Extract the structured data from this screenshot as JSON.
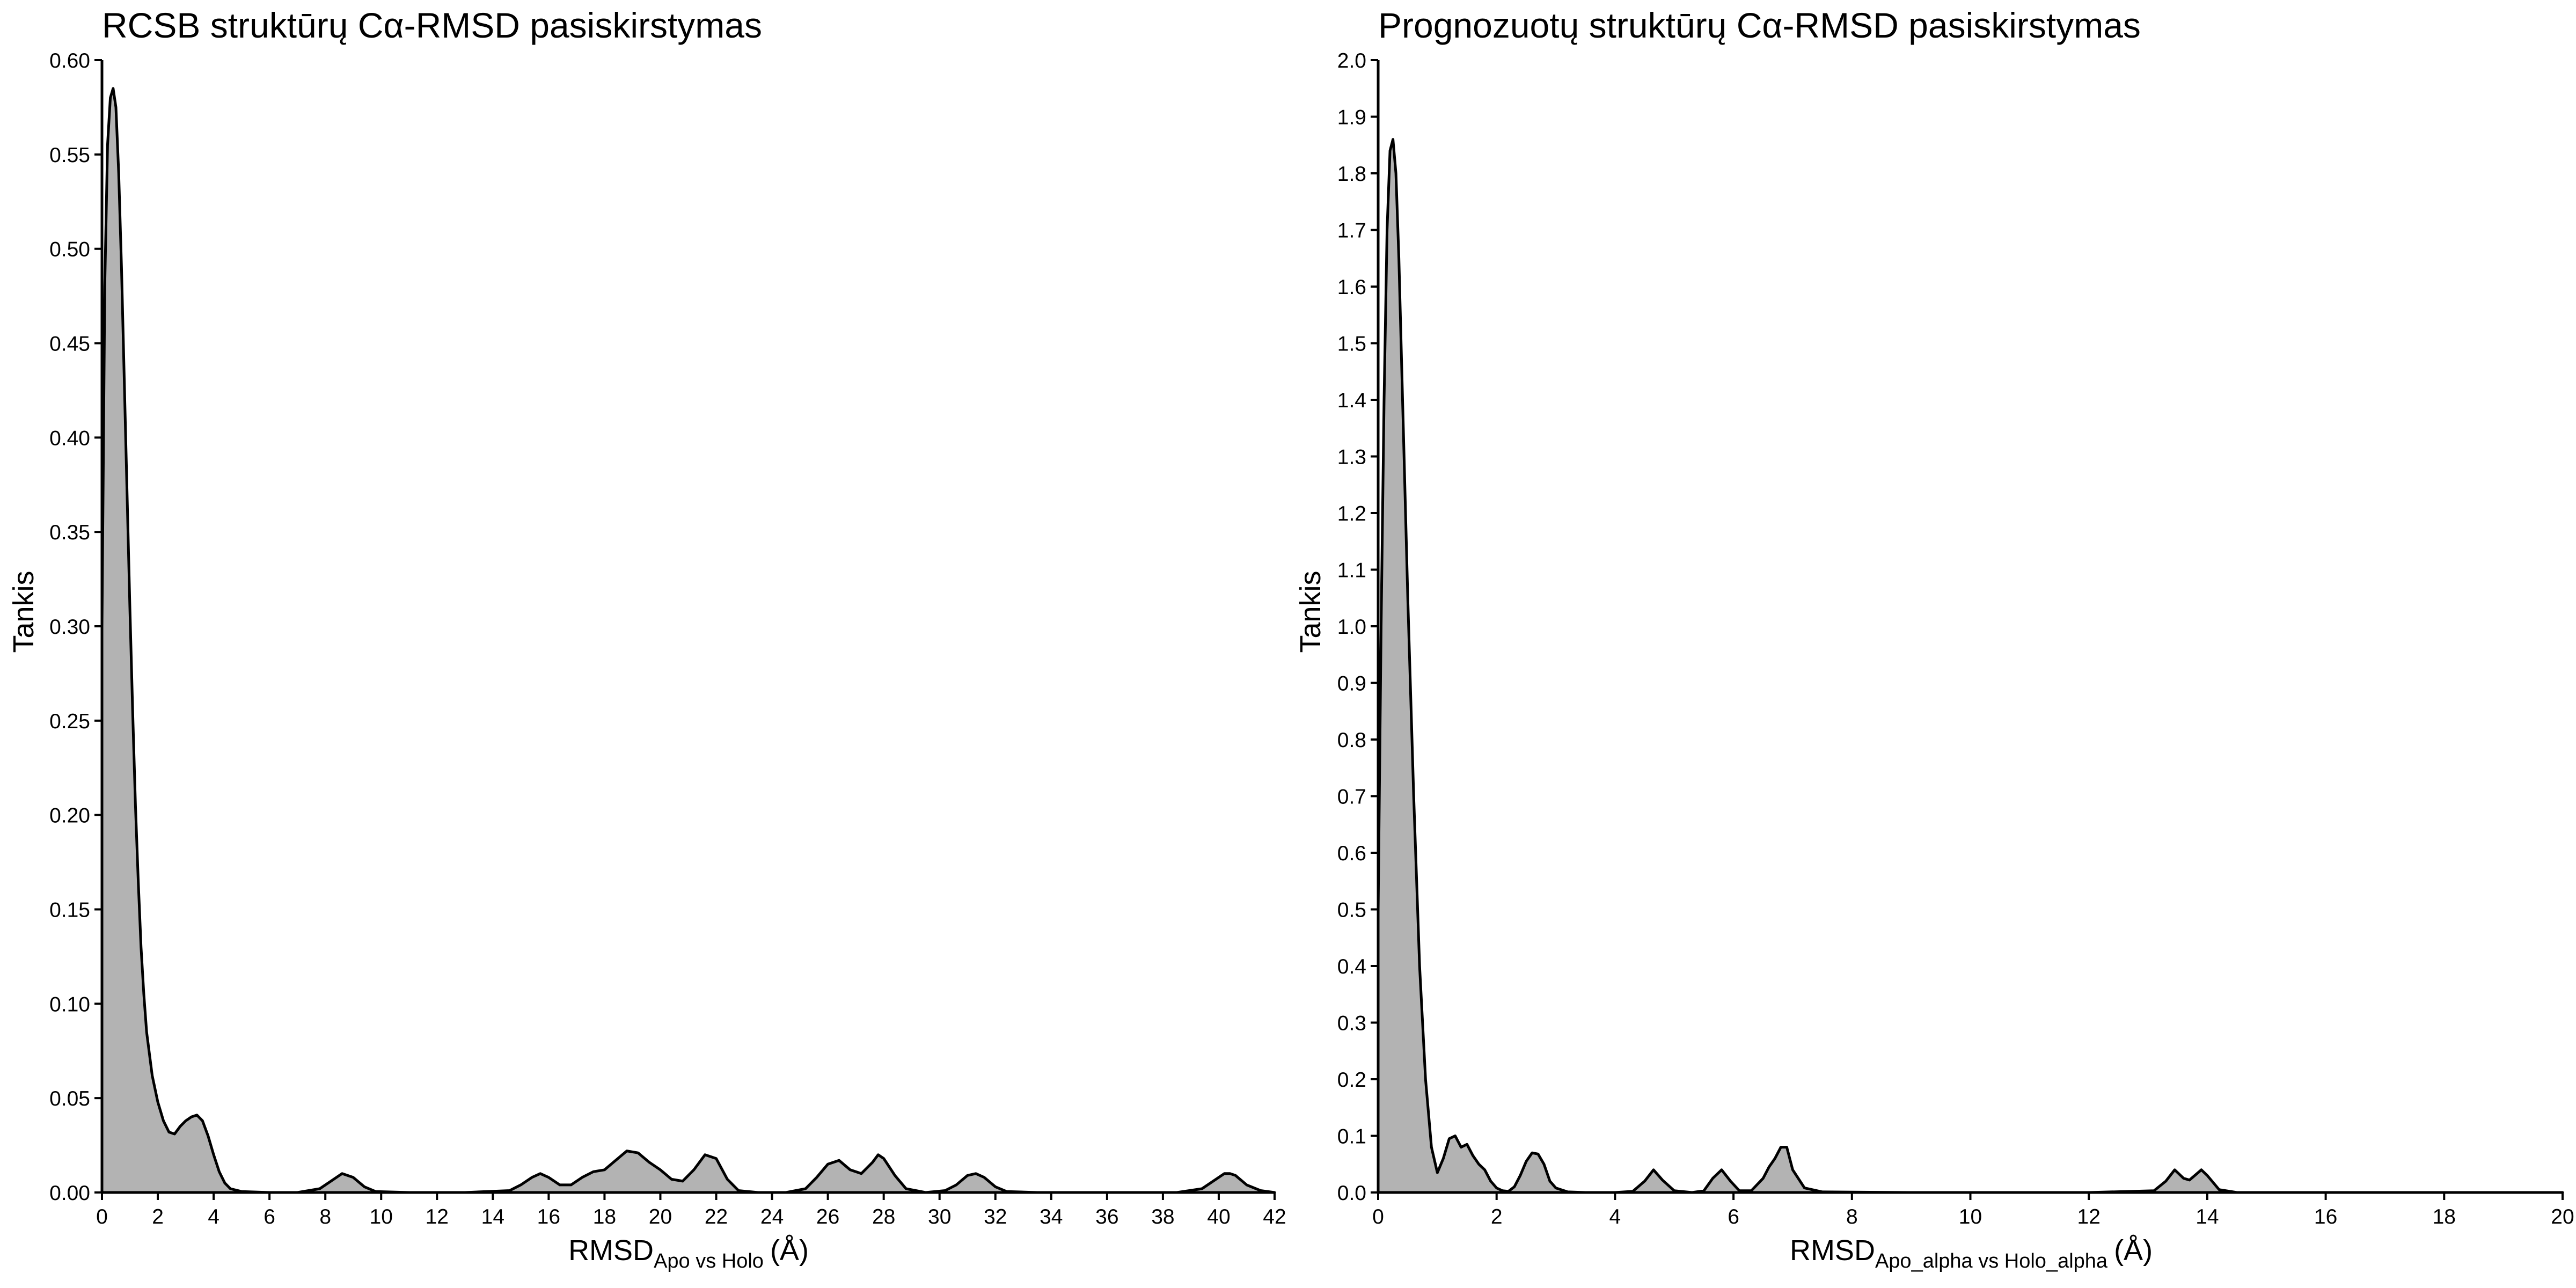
{
  "colors": {
    "fill": "#b3b3b3",
    "stroke": "#000000",
    "background": "#ffffff"
  },
  "chart_data": [
    {
      "type": "area",
      "title": "RCSB struktūrų Cα-RMSD pasiskirstymas",
      "xlabel": {
        "main": "RMSD",
        "sub": "Apo vs Holo",
        "unit": "(Å)"
      },
      "ylabel": "Tankis",
      "xlim": [
        0,
        42
      ],
      "ylim": [
        0,
        0.6
      ],
      "x_ticks": [
        0,
        2,
        4,
        6,
        8,
        10,
        12,
        14,
        16,
        18,
        20,
        22,
        24,
        26,
        28,
        30,
        32,
        34,
        36,
        38,
        40,
        42
      ],
      "y_ticks": [
        0.0,
        0.05,
        0.1,
        0.15,
        0.2,
        0.25,
        0.3,
        0.35,
        0.4,
        0.45,
        0.5,
        0.55,
        0.6
      ],
      "x_tick_labels": [
        "0",
        "2",
        "4",
        "6",
        "8",
        "10",
        "12",
        "14",
        "16",
        "18",
        "20",
        "22",
        "24",
        "26",
        "28",
        "30",
        "32",
        "34",
        "36",
        "38",
        "40",
        "42"
      ],
      "y_tick_labels": [
        "0.00",
        "0.05",
        "0.10",
        "0.15",
        "0.20",
        "0.25",
        "0.30",
        "0.35",
        "0.40",
        "0.45",
        "0.50",
        "0.55",
        "0.60"
      ],
      "grid": false,
      "fill_color": "#b3b3b3",
      "series": [
        {
          "x": [
            0,
            0.1,
            0.2,
            0.3,
            0.4,
            0.5,
            0.6,
            0.7,
            0.8,
            0.9,
            1.0,
            1.1,
            1.2,
            1.3,
            1.4,
            1.5,
            1.6,
            1.8,
            2.0,
            2.2,
            2.4,
            2.6,
            2.8,
            3.0,
            3.2,
            3.4,
            3.6,
            3.8,
            4.0,
            4.2,
            4.4,
            4.6,
            5.0,
            6.0,
            7.0,
            7.8,
            8.2,
            8.6,
            9.0,
            9.4,
            9.8,
            11,
            13,
            14.6,
            15.0,
            15.4,
            15.7,
            16.0,
            16.4,
            16.8,
            17.2,
            17.6,
            18.0,
            18.4,
            18.8,
            19.2,
            19.6,
            20.0,
            20.4,
            20.8,
            21.2,
            21.6,
            22.0,
            22.4,
            22.8,
            23.5,
            24.5,
            25.2,
            25.6,
            26.0,
            26.4,
            26.8,
            27.2,
            27.6,
            27.8,
            28.0,
            28.4,
            28.8,
            29.5,
            30.2,
            30.6,
            31.0,
            31.3,
            31.6,
            32.0,
            32.4,
            33.5,
            36,
            38.5,
            39.4,
            39.8,
            40.2,
            40.4,
            40.6,
            41.0,
            41.5,
            42
          ],
          "y": [
            0.3,
            0.48,
            0.555,
            0.58,
            0.585,
            0.575,
            0.54,
            0.49,
            0.43,
            0.37,
            0.31,
            0.255,
            0.205,
            0.165,
            0.13,
            0.105,
            0.085,
            0.062,
            0.048,
            0.038,
            0.032,
            0.031,
            0.035,
            0.038,
            0.04,
            0.041,
            0.038,
            0.03,
            0.02,
            0.011,
            0.005,
            0.002,
            0.0005,
            0,
            0,
            0.002,
            0.006,
            0.01,
            0.008,
            0.003,
            0.0005,
            0,
            0,
            0.001,
            0.004,
            0.008,
            0.01,
            0.008,
            0.004,
            0.004,
            0.008,
            0.011,
            0.012,
            0.017,
            0.022,
            0.021,
            0.016,
            0.012,
            0.007,
            0.006,
            0.012,
            0.02,
            0.018,
            0.007,
            0.001,
            0,
            0,
            0.002,
            0.008,
            0.015,
            0.017,
            0.012,
            0.01,
            0.016,
            0.02,
            0.018,
            0.009,
            0.002,
            0,
            0.001,
            0.004,
            0.009,
            0.01,
            0.008,
            0.003,
            0.0005,
            0,
            0,
            0,
            0.002,
            0.006,
            0.01,
            0.01,
            0.009,
            0.004,
            0.001,
            0
          ]
        }
      ]
    },
    {
      "type": "area",
      "title": "Prognozuotų struktūrų Cα-RMSD pasiskirstymas",
      "xlabel": {
        "main": "RMSD",
        "sub": "Apo_alpha vs Holo_alpha",
        "unit": "(Å)"
      },
      "ylabel": "Tankis",
      "xlim": [
        0,
        20
      ],
      "ylim": [
        0,
        2.0
      ],
      "x_ticks": [
        0,
        2,
        4,
        6,
        8,
        10,
        12,
        14,
        16,
        18,
        20
      ],
      "y_ticks": [
        0.0,
        0.1,
        0.2,
        0.3,
        0.4,
        0.5,
        0.6,
        0.7,
        0.8,
        0.9,
        1.0,
        1.1,
        1.2,
        1.3,
        1.4,
        1.5,
        1.6,
        1.7,
        1.8,
        1.9,
        2.0
      ],
      "x_tick_labels": [
        "0",
        "2",
        "4",
        "6",
        "8",
        "10",
        "12",
        "14",
        "16",
        "18",
        "20"
      ],
      "y_tick_labels": [
        "0.0",
        "0.1",
        "0.2",
        "0.3",
        "0.4",
        "0.5",
        "0.6",
        "0.7",
        "0.8",
        "0.9",
        "1.0",
        "1.1",
        "1.2",
        "1.3",
        "1.4",
        "1.5",
        "1.6",
        "1.7",
        "1.8",
        "1.9",
        "2.0"
      ],
      "grid": false,
      "fill_color": "#b3b3b3",
      "series": [
        {
          "x": [
            0,
            0.05,
            0.1,
            0.15,
            0.2,
            0.25,
            0.3,
            0.35,
            0.4,
            0.5,
            0.6,
            0.7,
            0.8,
            0.9,
            1.0,
            1.1,
            1.2,
            1.3,
            1.4,
            1.5,
            1.6,
            1.7,
            1.8,
            1.9,
            2.0,
            2.1,
            2.2,
            2.3,
            2.4,
            2.5,
            2.6,
            2.7,
            2.8,
            2.9,
            3.0,
            3.2,
            3.5,
            4.0,
            4.3,
            4.5,
            4.65,
            4.8,
            5.0,
            5.3,
            5.5,
            5.65,
            5.8,
            5.95,
            6.1,
            6.3,
            6.5,
            6.6,
            6.7,
            6.8,
            6.9,
            7.0,
            7.2,
            7.5,
            9,
            12,
            13.1,
            13.3,
            13.45,
            13.6,
            13.7,
            13.9,
            14.0,
            14.2,
            14.5,
            16,
            20
          ],
          "y": [
            0.5,
            1.0,
            1.4,
            1.7,
            1.84,
            1.86,
            1.8,
            1.65,
            1.45,
            1.05,
            0.7,
            0.4,
            0.2,
            0.08,
            0.035,
            0.06,
            0.095,
            0.1,
            0.08,
            0.085,
            0.065,
            0.05,
            0.04,
            0.02,
            0.008,
            0.003,
            0.002,
            0.01,
            0.03,
            0.055,
            0.07,
            0.068,
            0.05,
            0.02,
            0.008,
            0.001,
            0,
            0,
            0.002,
            0.02,
            0.04,
            0.022,
            0.003,
            0,
            0.003,
            0.025,
            0.04,
            0.02,
            0.003,
            0.003,
            0.025,
            0.045,
            0.06,
            0.08,
            0.08,
            0.04,
            0.008,
            0.001,
            0,
            0,
            0.003,
            0.02,
            0.04,
            0.025,
            0.022,
            0.04,
            0.03,
            0.005,
            0,
            0,
            0
          ]
        }
      ]
    }
  ]
}
